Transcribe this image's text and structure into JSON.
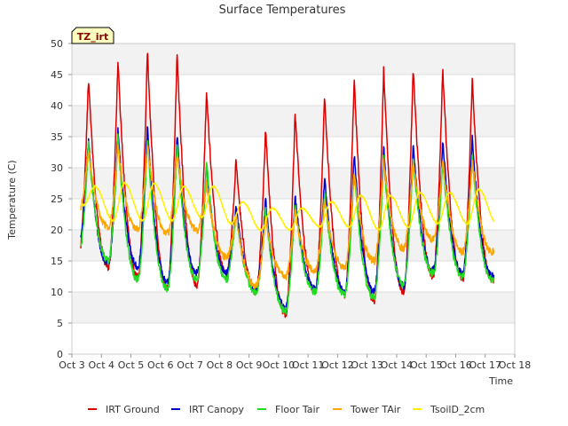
{
  "chart_data": {
    "type": "line",
    "title": "Surface Temperatures",
    "xlabel": "Time",
    "ylabel": "Temperature (C)",
    "badge": "TZ_irt",
    "xlim": [
      3,
      18
    ],
    "ylim": [
      0,
      50
    ],
    "x_ticks": [
      3,
      4,
      5,
      6,
      7,
      8,
      9,
      10,
      11,
      12,
      13,
      14,
      15,
      16,
      17,
      18
    ],
    "x_tick_labels": [
      "Oct 3",
      "Oct 4",
      "Oct 5",
      "Oct 6",
      "Oct 7",
      "Oct 8",
      "Oct 9",
      "Oct 10",
      "Oct 11",
      "Oct 12",
      "Oct 13",
      "Oct 14",
      "Oct 15",
      "Oct 16",
      "Oct 17",
      "Oct 18"
    ],
    "y_ticks": [
      0,
      5,
      10,
      15,
      20,
      25,
      30,
      35,
      40,
      45,
      50
    ],
    "y_tick_labels": [
      "0",
      "5",
      "10",
      "15",
      "20",
      "25",
      "30",
      "35",
      "40",
      "45",
      "50"
    ],
    "grid": true,
    "legend_position": "bottom",
    "x_start": 3.3,
    "x_end": 17.3,
    "series": [
      {
        "name": "IRT Ground",
        "color": "#dd0000",
        "daily_max": [
          44.5,
          47.5,
          49,
          48.5,
          42.5,
          31.5,
          36.5,
          39,
          42,
          44.5,
          46,
          46.5,
          46,
          44.5
        ],
        "daily_min": [
          16,
          14,
          12.5,
          10.5,
          11,
          13,
          10,
          6.5,
          10,
          9.5,
          8.5,
          10,
          12.5,
          12,
          12,
          13
        ]
      },
      {
        "name": "IRT Canopy",
        "color": "#0000cc",
        "daily_max": [
          34.5,
          36,
          37,
          35.5,
          30.5,
          24,
          25,
          25.5,
          28.5,
          32.5,
          33.5,
          34,
          34.5,
          35
        ],
        "daily_min": [
          18,
          14.5,
          14,
          11.5,
          13,
          13,
          10.5,
          7.5,
          10.5,
          10,
          10,
          11,
          13.5,
          13,
          12.5,
          19
        ]
      },
      {
        "name": "Floor Tair",
        "color": "#22dd22",
        "daily_max": [
          34,
          35,
          34.5,
          34,
          31,
          23,
          23.5,
          24.5,
          26,
          29.5,
          31.5,
          31.5,
          31,
          32
        ],
        "daily_min": [
          16,
          15,
          12,
          10.5,
          12,
          12,
          10,
          7,
          10,
          9.5,
          9,
          11,
          13,
          12.5,
          12,
          16
        ]
      },
      {
        "name": "Tower TAir",
        "color": "#ffa500",
        "daily_max": [
          33,
          33.5,
          34,
          32.5,
          27.5,
          22.5,
          22,
          23,
          25,
          29,
          31,
          31,
          31.5,
          31.5
        ],
        "daily_min": [
          23,
          20.5,
          20,
          19.5,
          20,
          15.5,
          11,
          12.5,
          13.5,
          14,
          15,
          17,
          18.5,
          16.5,
          16.5,
          23
        ]
      },
      {
        "name": "TsoilD_2cm",
        "color": "#ffee00",
        "daily_max": [
          27,
          27.5,
          27.5,
          27,
          27,
          24.5,
          23.5,
          23.5,
          24.5,
          25.5,
          25.5,
          26,
          26,
          26.5
        ],
        "daily_min": [
          24,
          21.5,
          21.5,
          21.5,
          22,
          21,
          20,
          20,
          20.5,
          20.5,
          20,
          20.5,
          21,
          21,
          21,
          22
        ]
      }
    ]
  }
}
